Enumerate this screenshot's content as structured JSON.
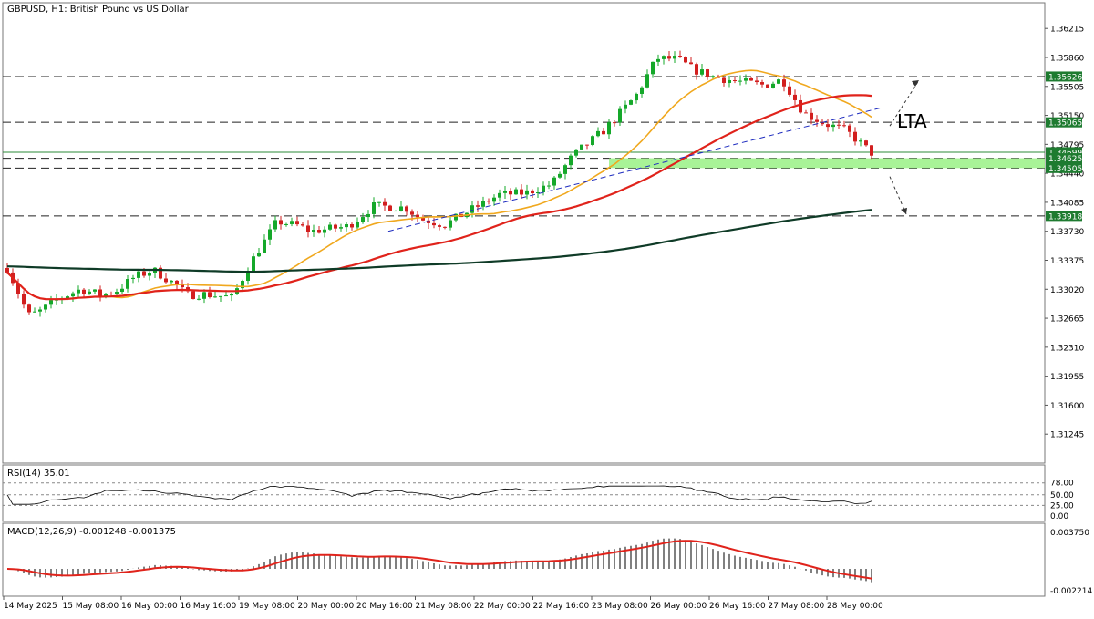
{
  "chart_data": {
    "type": "candlestick",
    "symbol_title": "GBPUSD, H1:  British Pound vs US Dollar",
    "price_range": [
      1.3089,
      1.3653
    ],
    "price_ticks": [
      "1.36215",
      "1.35860",
      "1.35505",
      "1.35150",
      "1.34795",
      "1.34440",
      "1.34085",
      "1.33730",
      "1.33375",
      "1.33020",
      "1.32665",
      "1.32310",
      "1.31955",
      "1.31600",
      "1.31245"
    ],
    "x_labels": [
      "14 May 2025",
      "15 May 08:00",
      "16 May 00:00",
      "16 May 16:00",
      "19 May 08:00",
      "20 May 00:00",
      "20 May 16:00",
      "21 May 08:00",
      "22 May 00:00",
      "22 May 16:00",
      "23 May 08:00",
      "26 May 00:00",
      "26 May 16:00",
      "27 May 08:00",
      "28 May 00:00"
    ],
    "candle_count": 159,
    "open": 1.3328,
    "close_path": [
      [
        0,
        1.3328
      ],
      [
        8,
        1.327
      ],
      [
        12,
        1.3274
      ],
      [
        20,
        1.3291
      ],
      [
        28,
        1.3302
      ],
      [
        36,
        1.3295
      ],
      [
        42,
        1.3301
      ],
      [
        49,
        1.3318
      ],
      [
        56,
        1.3325
      ],
      [
        66,
        1.3304
      ],
      [
        68,
        1.3295
      ],
      [
        75,
        1.3296
      ],
      [
        86,
        1.3292
      ],
      [
        93,
        1.3335
      ],
      [
        103,
        1.3385
      ],
      [
        111,
        1.338
      ],
      [
        116,
        1.3373
      ],
      [
        130,
        1.3379
      ],
      [
        140,
        1.3404
      ],
      [
        152,
        1.3402
      ],
      [
        158,
        1.3388
      ],
      [
        167,
        1.3381
      ],
      [
        178,
        1.3401
      ],
      [
        188,
        1.3418
      ],
      [
        198,
        1.342
      ],
      [
        208,
        1.3431
      ],
      [
        216,
        1.3466
      ],
      [
        228,
        1.3497
      ],
      [
        240,
        1.3539
      ],
      [
        248,
        1.3585
      ],
      [
        256,
        1.3584
      ],
      [
        262,
        1.3571
      ],
      [
        270,
        1.3562
      ],
      [
        278,
        1.3557
      ],
      [
        289,
        1.3552
      ],
      [
        296,
        1.3559
      ],
      [
        304,
        1.3518
      ],
      [
        312,
        1.3505
      ],
      [
        320,
        1.3497
      ],
      [
        330,
        1.3469
      ]
    ],
    "candle_seed": 7,
    "series": [
      {
        "type": "sma",
        "period": 20,
        "color": "#f0a81e"
      },
      {
        "type": "sma",
        "period": 50,
        "color": "#e0231b"
      },
      {
        "type": "sma",
        "period": 200,
        "color": "#0f3b27",
        "warmup_start": 1.333
      }
    ],
    "horizontal_levels": [
      {
        "price": 1.35626,
        "label": "1.35626",
        "style": "dashed",
        "label_bg": "#1e7b30"
      },
      {
        "price": 1.35065,
        "label": "1.35065",
        "style": "dashed",
        "label_bg": "#1e7b30"
      },
      {
        "price": 1.34699,
        "label": "1.34699",
        "style": "solid-green",
        "label_bg": "#1e7b30"
      },
      {
        "price": 1.34625,
        "label": "1.34625",
        "style": "dashed",
        "label_bg": "#1e7b30"
      },
      {
        "price": 1.34505,
        "label": "1.34505",
        "style": "dashed",
        "label_bg": "#1e7b30"
      },
      {
        "price": 1.33918,
        "label": "1.33918",
        "style": "dashed",
        "label_bg": "#1e7b30"
      }
    ],
    "support_zone": {
      "from": 1.34505,
      "to": 1.34625,
      "color": "#9ef28c"
    },
    "trendline": {
      "color": "#1e2cbf",
      "points": [
        [
          1.3373,
          0.37
        ],
        [
          1.3525,
          0.845
        ]
      ]
    },
    "annotation_text": "LTA",
    "arrows": [
      "up-right",
      "down-right"
    ],
    "rsi": {
      "label": "RSI(14) 35.01",
      "value": 35.01,
      "ticks": [
        "78.00",
        "50.00",
        "25.00",
        "0.00"
      ],
      "levels": [
        78,
        50,
        25,
        0
      ]
    },
    "macd": {
      "label": "MACD(12,26,9) -0.001248 -0.001375",
      "macd": -0.001248,
      "signal": -0.001375,
      "ticks": [
        "0.003750",
        "-0.002214"
      ],
      "range": [
        -0.002214,
        0.00375
      ]
    },
    "colors": {
      "up_candle": "#15a82a",
      "down_candle": "#d21f1f",
      "grid_dash": "#1a1a1a",
      "macd_bars": "#000000",
      "macd_signal": "#e0231b"
    }
  }
}
